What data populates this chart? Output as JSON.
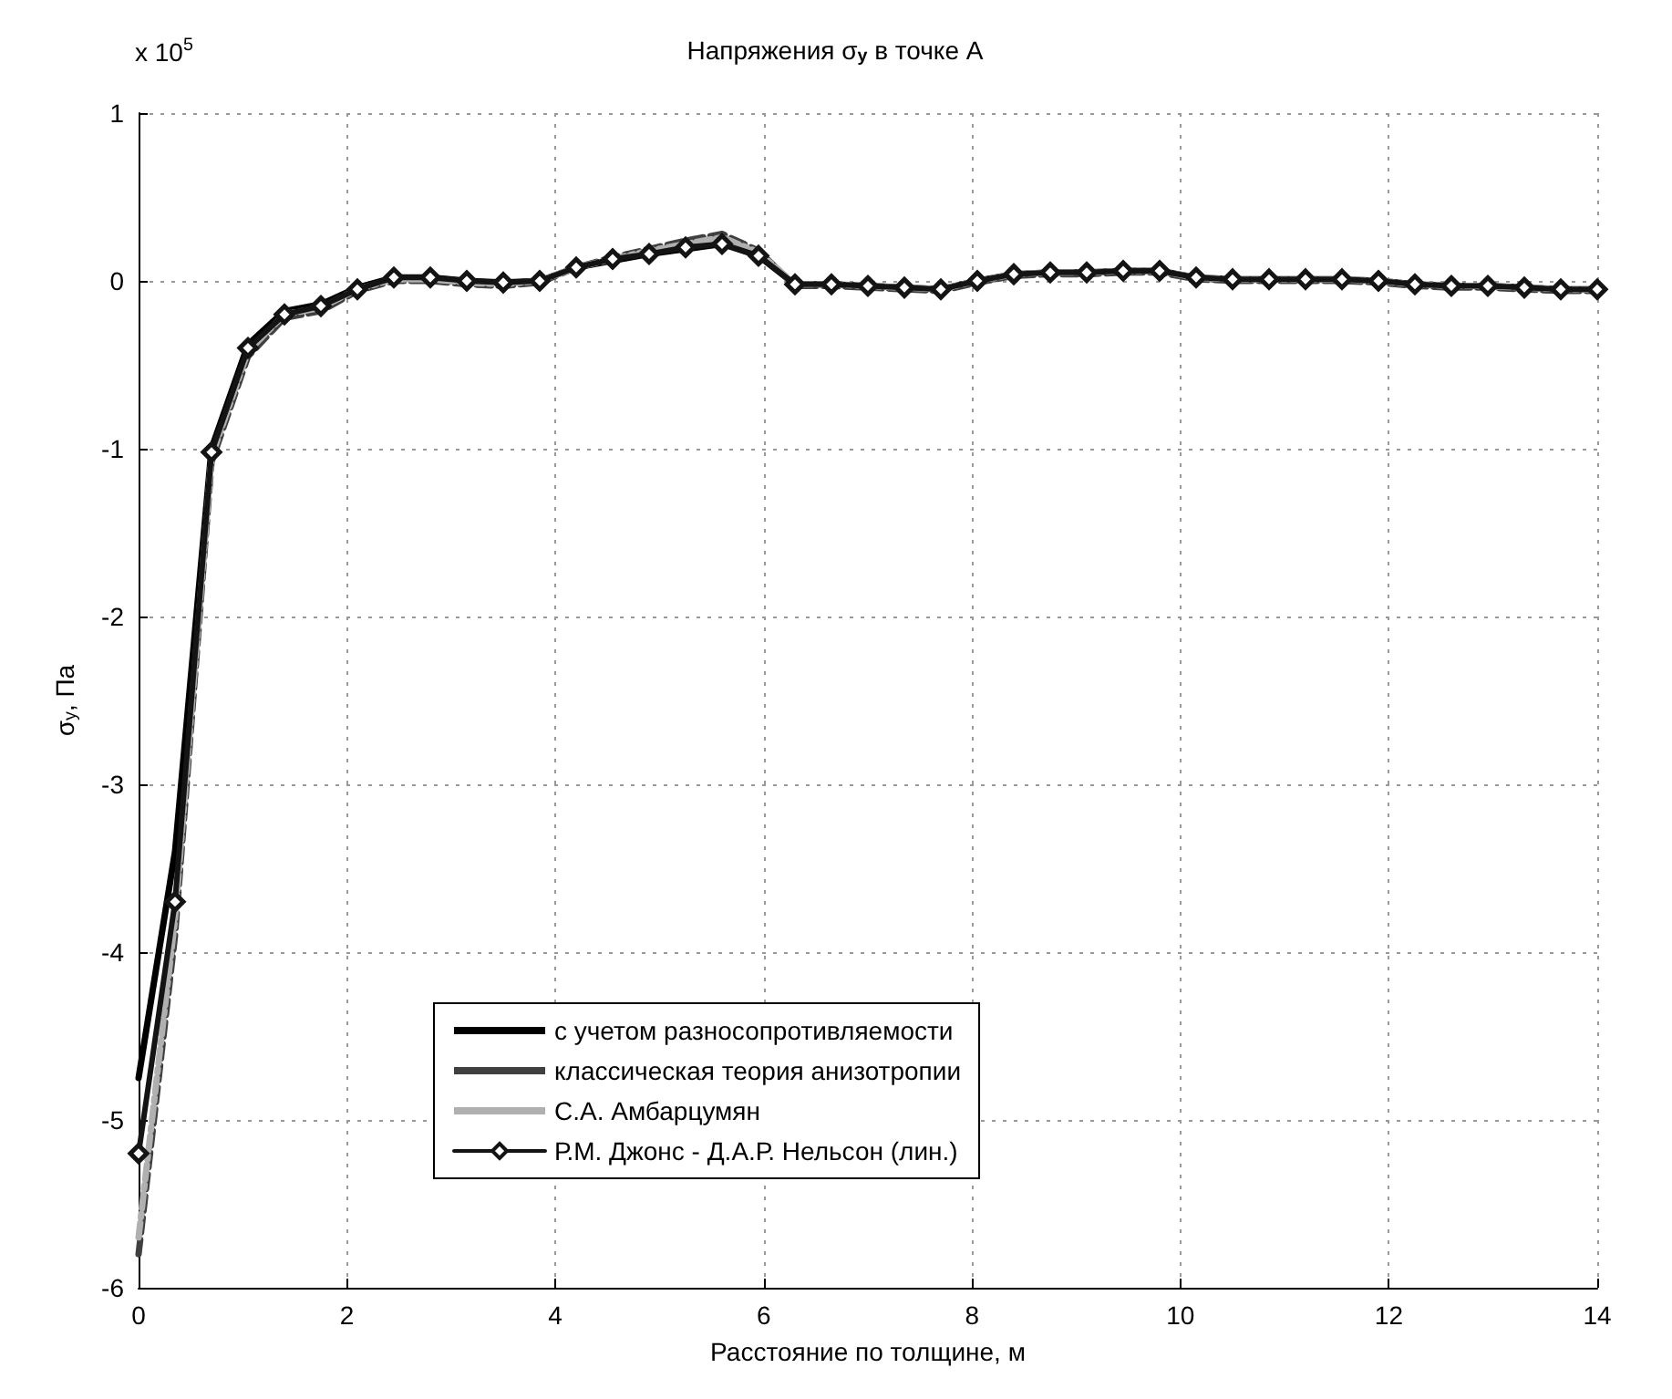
{
  "chart_data": {
    "type": "line",
    "title": "Напряжения σ$_{y}$ в точке А",
    "xlabel": "Расстояние по толщине, м",
    "ylabel": "σ$_{y}$, Па",
    "annotations": [
      "x 10$^{5}$"
    ],
    "x": [
      0,
      0.35,
      0.7,
      1.05,
      1.4,
      1.75,
      2.1,
      2.45,
      2.8,
      3.15,
      3.5,
      3.85,
      4.2,
      4.55,
      4.9,
      5.25,
      5.6,
      5.95,
      6.3,
      6.65,
      7,
      7.35,
      7.7,
      8.05,
      8.4,
      8.75,
      9.1,
      9.45,
      9.8,
      10.15,
      10.5,
      10.85,
      11.2,
      11.55,
      11.9,
      12.25,
      12.6,
      12.95,
      13.3,
      13.65,
      14
    ],
    "xlim": [
      0,
      14
    ],
    "xticks": [
      0,
      2,
      4,
      6,
      8,
      10,
      12,
      14
    ],
    "ylim": [
      -6,
      1
    ],
    "yticks": [
      -6,
      -5,
      -4,
      -3,
      -2,
      -1,
      0,
      1
    ],
    "grid": true,
    "legend": "bottom",
    "series": [
      {
        "name": "с учетом разносопротивляемости",
        "color": "#000000",
        "line_style": "solid",
        "marker": "none",
        "values": [
          -4.75,
          -3.4,
          -1.0,
          -0.38,
          -0.18,
          -0.14,
          -0.04,
          0.02,
          0.02,
          0.0,
          -0.01,
          0.0,
          0.08,
          0.12,
          0.16,
          0.19,
          0.22,
          0.15,
          -0.02,
          -0.02,
          -0.03,
          -0.04,
          -0.05,
          0.0,
          0.04,
          0.05,
          0.05,
          0.06,
          0.06,
          0.02,
          0.01,
          0.01,
          0.01,
          0.01,
          0.0,
          -0.02,
          -0.03,
          -0.03,
          -0.04,
          -0.05,
          -0.05
        ]
      },
      {
        "name": "классическая теория анизотропии",
        "color": "#404040",
        "line_style": "dashed",
        "marker": "none",
        "values": [
          -5.8,
          -3.9,
          -1.08,
          -0.45,
          -0.22,
          -0.18,
          -0.06,
          0.0,
          0.0,
          -0.02,
          -0.03,
          -0.01,
          0.08,
          0.14,
          0.19,
          0.24,
          0.28,
          0.18,
          -0.03,
          -0.03,
          -0.04,
          -0.05,
          -0.06,
          -0.01,
          0.03,
          0.04,
          0.04,
          0.05,
          0.05,
          0.01,
          0.0,
          0.0,
          0.0,
          0.0,
          -0.01,
          -0.03,
          -0.04,
          -0.04,
          -0.05,
          -0.06,
          -0.06
        ]
      },
      {
        "name": "С.А. Амбарцумян",
        "color": "#b0b0b0",
        "line_style": "dashdot",
        "marker": "none",
        "values": [
          -5.7,
          -3.8,
          -1.05,
          -0.42,
          -0.2,
          -0.16,
          -0.05,
          0.01,
          0.01,
          -0.01,
          -0.02,
          0.0,
          0.08,
          0.13,
          0.18,
          0.22,
          0.26,
          0.17,
          -0.02,
          -0.02,
          -0.03,
          -0.04,
          -0.05,
          0.0,
          0.04,
          0.05,
          0.05,
          0.06,
          0.06,
          0.02,
          0.01,
          0.01,
          0.01,
          0.01,
          0.0,
          -0.02,
          -0.03,
          -0.03,
          -0.04,
          -0.05,
          -0.05
        ]
      },
      {
        "name": "Р.М. Джонс - Д.А.Р. Нельсон (лин.)",
        "color": "#141414",
        "line_style": "solid",
        "marker": "diamond",
        "values": [
          -5.2,
          -3.7,
          -1.02,
          -0.4,
          -0.2,
          -0.15,
          -0.05,
          0.02,
          0.02,
          0.0,
          -0.01,
          0.0,
          0.08,
          0.13,
          0.16,
          0.2,
          0.22,
          0.15,
          -0.02,
          -0.02,
          -0.03,
          -0.04,
          -0.05,
          0.0,
          0.04,
          0.05,
          0.05,
          0.06,
          0.06,
          0.02,
          0.01,
          0.01,
          0.01,
          0.01,
          0.0,
          -0.02,
          -0.03,
          -0.03,
          -0.04,
          -0.05,
          -0.05
        ]
      }
    ]
  }
}
